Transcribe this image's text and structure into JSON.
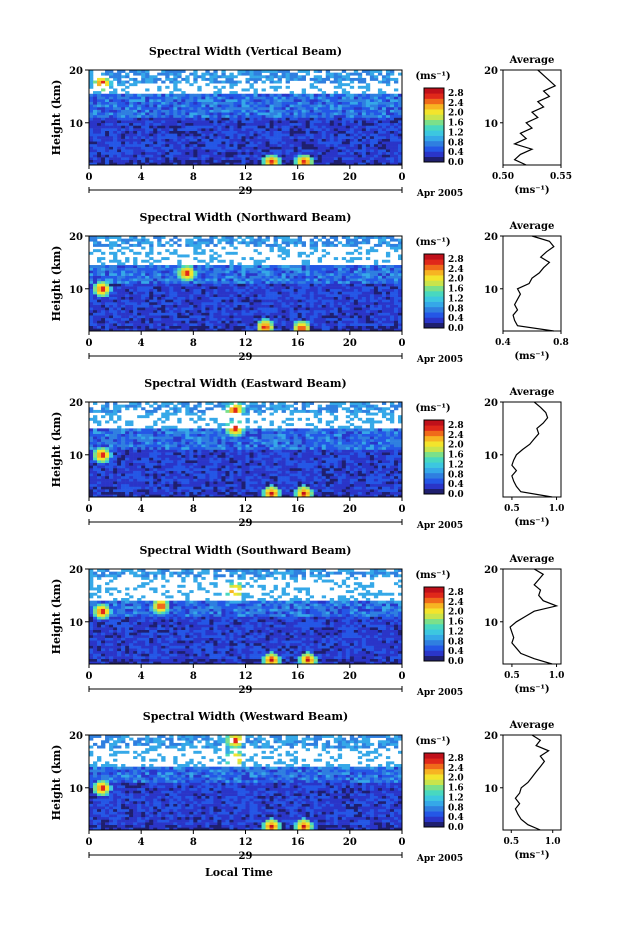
{
  "figure": {
    "xlabel": "Local Time",
    "date_label": "Apr 2005",
    "day_label": "29",
    "ylabel": "Height (km)",
    "colorbar_unit": "(ms⁻¹)",
    "colorbar_ticks": [
      "0.0",
      "0.4",
      "0.8",
      "1.2",
      "1.6",
      "2.0",
      "2.4",
      "2.8"
    ],
    "colormap": [
      "#1f1f6e",
      "#2a35c8",
      "#2457e6",
      "#2f7fe0",
      "#35a8e8",
      "#3cc7e0",
      "#48d8c0",
      "#7be08a",
      "#c9e44c",
      "#f3e42c",
      "#f7b422",
      "#f06a1a",
      "#e0281a",
      "#c0101a"
    ],
    "average_title": "Average",
    "average_unit_label": "(ms⁻¹)"
  },
  "chart_data": [
    {
      "type": "heatmap",
      "title": "Spectral Width (Vertical Beam)",
      "x_ticks": [
        "0",
        "4",
        "8",
        "12",
        "16",
        "20",
        "0"
      ],
      "x_range": [
        0,
        24
      ],
      "y_ticks": [
        "10",
        "20"
      ],
      "y_range": [
        2,
        20
      ],
      "colorbar_range": [
        0.0,
        3.0
      ],
      "gap_band_km": [
        15.5,
        17.5
      ],
      "hotspots": [
        {
          "time": 14.0,
          "height": 2.6
        },
        {
          "time": 16.5,
          "height": 2.6
        },
        {
          "time": 1.0,
          "height": 17.5
        }
      ],
      "average": {
        "xticks": [
          "0.50",
          "0.55"
        ],
        "xlim": [
          0.5,
          0.55
        ],
        "heights": [
          2,
          3,
          4,
          5,
          6,
          7,
          8,
          9,
          10,
          11,
          12,
          13,
          14,
          15,
          16,
          17,
          18,
          19,
          20
        ],
        "values": [
          0.52,
          0.51,
          0.515,
          0.525,
          0.51,
          0.52,
          0.515,
          0.525,
          0.52,
          0.53,
          0.525,
          0.535,
          0.53,
          0.54,
          0.535,
          0.545,
          0.54,
          0.535,
          0.53
        ]
      }
    },
    {
      "type": "heatmap",
      "title": "Spectral Width (Northward Beam)",
      "x_ticks": [
        "0",
        "4",
        "8",
        "12",
        "16",
        "20",
        "0"
      ],
      "x_range": [
        0,
        24
      ],
      "y_ticks": [
        "10",
        "20"
      ],
      "y_range": [
        2,
        20
      ],
      "colorbar_range": [
        0.0,
        3.0
      ],
      "gap_band_km": [
        14.5,
        18.0
      ],
      "hotspots": [
        {
          "time": 13.5,
          "height": 2.8
        },
        {
          "time": 16.3,
          "height": 2.6
        },
        {
          "time": 1.0,
          "height": 10.0
        },
        {
          "time": 7.5,
          "height": 13.0
        }
      ],
      "average": {
        "xticks": [
          "0.4",
          "0.8"
        ],
        "xlim": [
          0.4,
          0.8
        ],
        "heights": [
          2,
          3,
          4,
          5,
          6,
          7,
          8,
          9,
          10,
          11,
          12,
          13,
          14,
          15,
          16,
          17,
          18,
          19,
          20
        ],
        "values": [
          0.75,
          0.5,
          0.48,
          0.47,
          0.5,
          0.48,
          0.5,
          0.52,
          0.5,
          0.58,
          0.6,
          0.65,
          0.68,
          0.72,
          0.66,
          0.7,
          0.75,
          0.72,
          0.6
        ]
      }
    },
    {
      "type": "heatmap",
      "title": "Spectral Width (Eastward Beam)",
      "x_ticks": [
        "0",
        "4",
        "8",
        "12",
        "16",
        "20",
        "0"
      ],
      "x_range": [
        0,
        24
      ],
      "y_ticks": [
        "10",
        "20"
      ],
      "y_range": [
        2,
        20
      ],
      "colorbar_range": [
        0.0,
        3.0
      ],
      "gap_band_km": [
        15.0,
        18.0
      ],
      "hotspots": [
        {
          "time": 11.2,
          "height": 18.5
        },
        {
          "time": 11.2,
          "height": 15.0
        },
        {
          "time": 14.0,
          "height": 2.7
        },
        {
          "time": 16.5,
          "height": 2.7
        },
        {
          "time": 1.0,
          "height": 10.0
        }
      ],
      "average": {
        "xticks": [
          "0.5",
          "1.0"
        ],
        "xlim": [
          0.4,
          1.05
        ],
        "heights": [
          2,
          3,
          4,
          5,
          6,
          7,
          8,
          9,
          10,
          11,
          12,
          13,
          14,
          15,
          16,
          17,
          18,
          19,
          20
        ],
        "values": [
          0.95,
          0.6,
          0.55,
          0.52,
          0.5,
          0.55,
          0.5,
          0.52,
          0.55,
          0.62,
          0.7,
          0.75,
          0.8,
          0.78,
          0.85,
          0.9,
          0.88,
          0.82,
          0.75
        ]
      }
    },
    {
      "type": "heatmap",
      "title": "Spectral Width (Southward Beam)",
      "x_ticks": [
        "0",
        "4",
        "8",
        "12",
        "16",
        "20",
        "0"
      ],
      "x_range": [
        0,
        24
      ],
      "y_ticks": [
        "10",
        "20"
      ],
      "y_range": [
        2,
        20
      ],
      "colorbar_range": [
        0.0,
        3.0
      ],
      "gap_band_km": [
        14.0,
        18.5
      ],
      "hotspots": [
        {
          "time": 11.2,
          "height": 16.0
        },
        {
          "time": 14.0,
          "height": 2.8
        },
        {
          "time": 16.8,
          "height": 2.8
        },
        {
          "time": 1.0,
          "height": 12.0
        },
        {
          "time": 5.5,
          "height": 13.0
        }
      ],
      "average": {
        "xticks": [
          "0.5",
          "1.0"
        ],
        "xlim": [
          0.4,
          1.05
        ],
        "heights": [
          2,
          3,
          4,
          5,
          6,
          7,
          8,
          9,
          10,
          11,
          12,
          13,
          14,
          15,
          16,
          17,
          18,
          19,
          20
        ],
        "values": [
          0.95,
          0.75,
          0.6,
          0.55,
          0.5,
          0.52,
          0.5,
          0.48,
          0.55,
          0.65,
          0.75,
          1.0,
          0.85,
          0.8,
          0.82,
          0.75,
          0.8,
          0.85,
          0.75
        ]
      }
    },
    {
      "type": "heatmap",
      "title": "Spectral Width (Westward Beam)",
      "x_ticks": [
        "0",
        "4",
        "8",
        "12",
        "16",
        "20",
        "0"
      ],
      "x_range": [
        0,
        24
      ],
      "y_ticks": [
        "10",
        "20"
      ],
      "y_range": [
        2,
        20
      ],
      "colorbar_range": [
        0.0,
        3.0
      ],
      "gap_band_km": [
        14.0,
        17.5
      ],
      "hotspots": [
        {
          "time": 11.2,
          "height": 19.0
        },
        {
          "time": 11.2,
          "height": 15.5
        },
        {
          "time": 14.0,
          "height": 2.7
        },
        {
          "time": 16.5,
          "height": 2.7
        },
        {
          "time": 1.0,
          "height": 10.0
        }
      ],
      "average": {
        "xticks": [
          "0.5",
          "1.0"
        ],
        "xlim": [
          0.4,
          1.1
        ],
        "heights": [
          2,
          3,
          4,
          5,
          6,
          7,
          8,
          9,
          10,
          11,
          12,
          13,
          14,
          15,
          16,
          17,
          18,
          19,
          20
        ],
        "values": [
          0.85,
          0.7,
          0.62,
          0.58,
          0.55,
          0.6,
          0.55,
          0.6,
          0.62,
          0.7,
          0.75,
          0.8,
          0.85,
          0.9,
          0.85,
          0.95,
          0.8,
          0.85,
          0.75
        ]
      }
    }
  ]
}
